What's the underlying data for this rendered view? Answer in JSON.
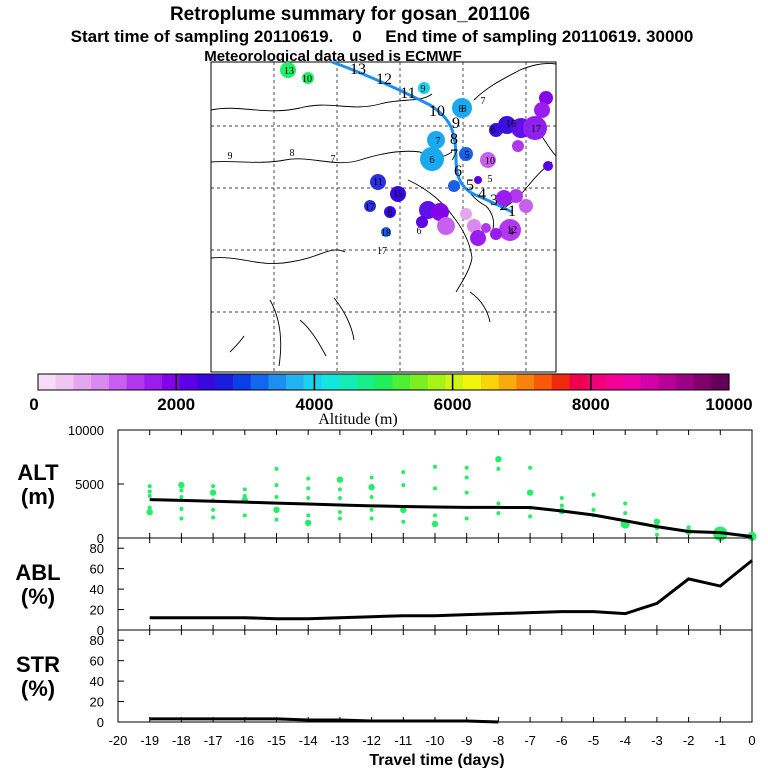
{
  "title": "Retroplume summary for gosan_201106",
  "subtitle": "Start time of sampling 20110619.    0     End time of sampling 20110619. 30000",
  "met_line": "Meteorological data used is ECMWF",
  "colorbar": {
    "label": "Altitude (m)",
    "tick_labels": [
      "0",
      "2000",
      "4000",
      "6000",
      "8000",
      "10000"
    ],
    "colors": [
      "#f6dcf6",
      "#efc6f2",
      "#e4a6ef",
      "#d88aee",
      "#c760ee",
      "#b238ef",
      "#9a1cee",
      "#8404ea",
      "#5c00e6",
      "#3808e0",
      "#1c1ce0",
      "#0c3ee8",
      "#1466ee",
      "#1e8ef0",
      "#22b4f0",
      "#18d2ee",
      "#12e6de",
      "#14ecb4",
      "#18ee8a",
      "#22ee5c",
      "#4cf034",
      "#7af022",
      "#a8f218",
      "#d2f412",
      "#f2f40e",
      "#f8d40c",
      "#f8ac0c",
      "#f8820c",
      "#f85a0c",
      "#f02a0c",
      "#f00050",
      "#f2007a",
      "#f40096",
      "#ec00a8",
      "#d400a8",
      "#b80098",
      "#9c0084",
      "#80006c",
      "#640058"
    ]
  },
  "map": {
    "trajectory_labels": [
      "13",
      "12",
      "11",
      "10",
      "9",
      "8",
      "7",
      "6",
      "5",
      "4",
      "3",
      "2",
      "1"
    ],
    "cluster_labels": [
      {
        "t": "13",
        "c": "#22e0c0"
      },
      {
        "t": "10",
        "c": "#22ee66"
      },
      {
        "t": "9",
        "c": "#22ee66"
      },
      {
        "t": "7",
        "c": "#22ee66"
      },
      {
        "t": "8",
        "c": "#22ee66"
      },
      {
        "t": "9",
        "c": "#c8f018"
      },
      {
        "t": "8",
        "c": "#c8f018"
      },
      {
        "t": "7",
        "c": "#e8e018"
      },
      {
        "t": "8",
        "c": "#1aa8f0"
      },
      {
        "t": "7",
        "c": "#1aa8f0"
      },
      {
        "t": "6",
        "c": "#1aa8f0"
      },
      {
        "t": "5",
        "c": "#1c5ee8"
      },
      {
        "t": "6",
        "c": "#12e0b0"
      },
      {
        "t": "16",
        "c": "#3a10e0"
      },
      {
        "t": "17",
        "c": "#9020ee"
      },
      {
        "t": "10",
        "c": "#c070f0"
      },
      {
        "t": "11",
        "c": "#2a30e0"
      },
      {
        "t": "15",
        "c": "#6010e8"
      },
      {
        "t": "12",
        "c": "#b050ee"
      },
      {
        "t": "4",
        "c": "#d080f0"
      },
      {
        "t": "17",
        "c": "#2a30e0"
      },
      {
        "t": "18",
        "c": "#1c5ee8"
      },
      {
        "t": "17",
        "c": "#1c5ee8"
      },
      {
        "t": "6",
        "c": "#1aa8f0"
      },
      {
        "t": "5",
        "c": "#c070f0"
      },
      {
        "t": "6",
        "c": "#2a30e0"
      }
    ]
  },
  "chart_data": [
    {
      "type": "line",
      "panel_label": "ALT",
      "unit_label": "(m)",
      "ylim": [
        0,
        10000
      ],
      "yticks": [
        "10000",
        "5000",
        "0"
      ],
      "x": [
        -19,
        -18,
        -17,
        -16,
        -15,
        -14,
        -13,
        -12,
        -11,
        -10,
        -9,
        -8,
        -7,
        -6,
        -5,
        -4,
        -3,
        -2,
        -1,
        0
      ],
      "series": [
        {
          "name": "mean altitude",
          "values": [
            3550,
            3480,
            3400,
            3320,
            3230,
            3150,
            3060,
            2980,
            2920,
            2870,
            2840,
            2830,
            2820,
            2500,
            2130,
            1600,
            1050,
            600,
            500,
            130
          ]
        }
      ],
      "scatter_color": "#22ee66",
      "scatter": [
        {
          "x": -19,
          "y": [
            4800,
            4300,
            3900,
            2800,
            2400
          ]
        },
        {
          "x": -18,
          "y": [
            4900,
            4400,
            3800,
            2700,
            1800
          ]
        },
        {
          "x": -17,
          "y": [
            4800,
            4200,
            3500,
            2600,
            1900
          ]
        },
        {
          "x": -16,
          "y": [
            4500,
            3900,
            3500,
            2100
          ]
        },
        {
          "x": -15,
          "y": [
            6400,
            4900,
            3800,
            2600,
            1700
          ]
        },
        {
          "x": -14,
          "y": [
            5500,
            4600,
            3700,
            2100,
            1400
          ]
        },
        {
          "x": -13,
          "y": [
            5400,
            4500,
            3700,
            2400,
            1800
          ]
        },
        {
          "x": -12,
          "y": [
            5600,
            4700,
            3800,
            2600,
            1800
          ]
        },
        {
          "x": -11,
          "y": [
            6100,
            4900,
            2600,
            1500
          ]
        },
        {
          "x": -10,
          "y": [
            6600,
            4600,
            2100,
            1300
          ]
        },
        {
          "x": -9,
          "y": [
            6500,
            5600,
            4200,
            1800
          ]
        },
        {
          "x": -8,
          "y": [
            7300,
            6400,
            3200,
            2300
          ]
        },
        {
          "x": -7,
          "y": [
            6500,
            4200,
            2800,
            2000
          ]
        },
        {
          "x": -6,
          "y": [
            3700,
            3000,
            2500
          ]
        },
        {
          "x": -5,
          "y": [
            4000,
            2600,
            2100
          ]
        },
        {
          "x": -4,
          "y": [
            3200,
            2300,
            1300
          ]
        },
        {
          "x": -3,
          "y": [
            1500,
            900,
            300
          ]
        },
        {
          "x": -2,
          "y": [
            1000,
            600
          ]
        },
        {
          "x": -1,
          "y": [
            700,
            400
          ]
        },
        {
          "x": 0,
          "y": [
            300,
            150
          ]
        }
      ]
    },
    {
      "type": "line",
      "panel_label": "ABL",
      "unit_label": "(%)",
      "ylim": [
        0,
        90
      ],
      "yticks": [
        "80",
        "60",
        "40",
        "20",
        "0"
      ],
      "x": [
        -19,
        -18,
        -17,
        -16,
        -15,
        -14,
        -13,
        -12,
        -11,
        -10,
        -9,
        -8,
        -7,
        -6,
        -5,
        -4,
        -3,
        -2,
        -1,
        0
      ],
      "series": [
        {
          "name": "ABL fraction",
          "values": [
            12,
            12,
            12,
            12,
            11,
            11,
            12,
            13,
            14,
            14,
            15,
            16,
            17,
            18,
            18,
            16,
            26,
            50,
            43,
            68
          ]
        }
      ]
    },
    {
      "type": "line",
      "panel_label": "STR",
      "unit_label": "(%)",
      "ylim": [
        0,
        90
      ],
      "yticks": [
        "80",
        "60",
        "40",
        "20",
        "0"
      ],
      "x": [
        -19,
        -18,
        -17,
        -16,
        -15,
        -14,
        -13,
        -12,
        -11,
        -10,
        -9,
        -8
      ],
      "series": [
        {
          "name": "stratospheric fraction",
          "values": [
            3,
            3,
            3,
            3,
            3,
            2,
            2,
            1,
            1,
            1,
            1,
            0
          ]
        }
      ],
      "xlabel": "Travel time (days)",
      "xticks": [
        "-20",
        "-19",
        "-18",
        "-17",
        "-16",
        "-15",
        "-14",
        "-13",
        "-12",
        "-11",
        "-10",
        "-9",
        "-8",
        "-7",
        "-6",
        "-5",
        "-4",
        "-3",
        "-2",
        "-1",
        "0"
      ]
    }
  ]
}
